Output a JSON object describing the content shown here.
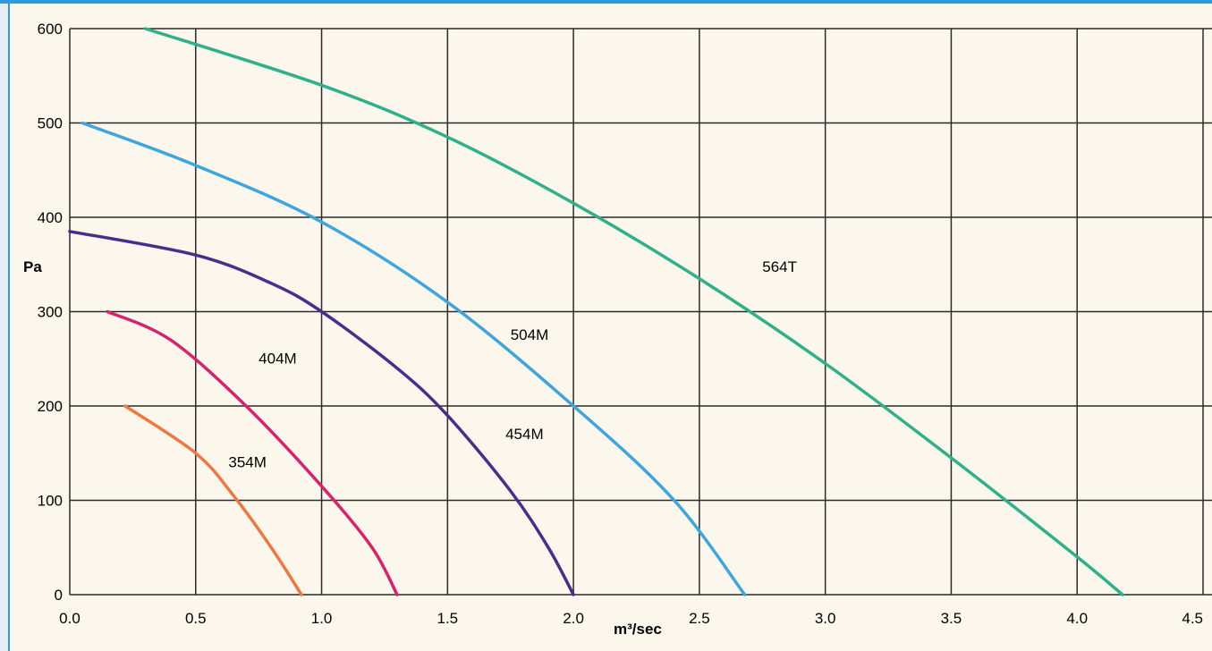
{
  "chart_data": {
    "type": "line",
    "xlabel": "m³/sec",
    "ylabel": "Pa",
    "xlim": [
      0,
      4.5
    ],
    "ylim": [
      0,
      600
    ],
    "grid": true,
    "x_ticks": [
      0,
      0.5,
      1,
      1.5,
      2,
      2.5,
      3,
      3.5,
      4,
      4.5
    ],
    "x_tick_labels": [
      "0.0",
      "0.5",
      "1.0",
      "1.5",
      "2.0",
      "2.5",
      "3.0",
      "3.5",
      "4.0",
      "4.5"
    ],
    "y_ticks": [
      0,
      100,
      200,
      300,
      400,
      500,
      600
    ],
    "y_tick_labels": [
      "0",
      "100",
      "200",
      "300",
      "400",
      "500",
      "600"
    ],
    "series": [
      {
        "name": "354M",
        "color": "#ee7744",
        "points": [
          [
            0.22,
            200
          ],
          [
            0.5,
            150
          ],
          [
            0.65,
            105
          ],
          [
            0.8,
            50
          ],
          [
            0.92,
            0
          ]
        ]
      },
      {
        "name": "404M",
        "color": "#d8226a",
        "points": [
          [
            0.15,
            300
          ],
          [
            0.4,
            270
          ],
          [
            0.7,
            200
          ],
          [
            1.0,
            115
          ],
          [
            1.2,
            50
          ],
          [
            1.3,
            0
          ]
        ]
      },
      {
        "name": "454M",
        "color": "#4a2c8c",
        "points": [
          [
            0.0,
            385
          ],
          [
            0.5,
            360
          ],
          [
            0.8,
            330
          ],
          [
            1.0,
            300
          ],
          [
            1.3,
            240
          ],
          [
            1.5,
            190
          ],
          [
            1.75,
            110
          ],
          [
            1.9,
            50
          ],
          [
            2.0,
            0
          ]
        ]
      },
      {
        "name": "504M",
        "color": "#3fa5dd",
        "points": [
          [
            0.05,
            500
          ],
          [
            0.5,
            455
          ],
          [
            1.0,
            395
          ],
          [
            1.5,
            310
          ],
          [
            2.0,
            200
          ],
          [
            2.4,
            100
          ],
          [
            2.68,
            0
          ]
        ]
      },
      {
        "name": "564T",
        "color": "#2fb08a",
        "points": [
          [
            0.3,
            600
          ],
          [
            1.0,
            540
          ],
          [
            1.5,
            485
          ],
          [
            2.0,
            415
          ],
          [
            2.5,
            335
          ],
          [
            3.0,
            245
          ],
          [
            3.5,
            145
          ],
          [
            4.0,
            40
          ],
          [
            4.18,
            0
          ]
        ]
      }
    ],
    "series_labels": [
      {
        "text": "354M",
        "x": 0.63,
        "y": 135
      },
      {
        "text": "404M",
        "x": 0.75,
        "y": 245
      },
      {
        "text": "454M",
        "x": 1.73,
        "y": 165
      },
      {
        "text": "504M",
        "x": 1.75,
        "y": 270
      },
      {
        "text": "564T",
        "x": 2.75,
        "y": 342
      }
    ]
  }
}
